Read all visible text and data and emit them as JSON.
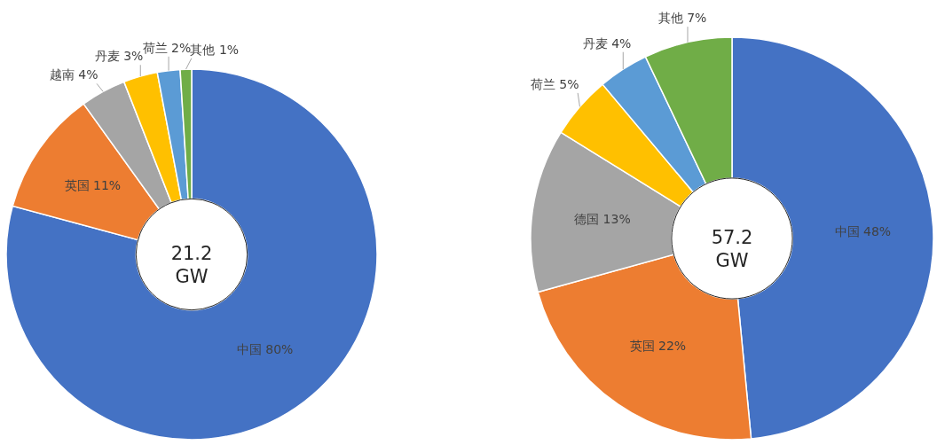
{
  "chart_data": [
    {
      "type": "donut",
      "categories": [
        "中国",
        "英国",
        "越南",
        "丹麦",
        "荷兰",
        "其他"
      ],
      "values": [
        80,
        11,
        4,
        3,
        2,
        1
      ],
      "colors": [
        "#4472c4",
        "#ed7d31",
        "#a5a5a5",
        "#ffc000",
        "#5b9bd5",
        "#70ad47"
      ],
      "value_labels": [
        "80%",
        "11%",
        "4%",
        "3%",
        "2%",
        "1%"
      ],
      "annotations": [
        "21.2\nGW"
      ]
    },
    {
      "type": "donut",
      "categories": [
        "中国",
        "英国",
        "德国",
        "荷兰",
        "丹麦",
        "其他"
      ],
      "values": [
        48,
        22,
        13,
        5,
        4,
        7
      ],
      "colors": [
        "#4472c4",
        "#ed7d31",
        "#a5a5a5",
        "#ffc000",
        "#5b9bd5",
        "#70ad47"
      ],
      "value_labels": [
        "48%",
        "22%",
        "13%",
        "5%",
        "4%",
        "7%"
      ],
      "annotations": [
        "57.2\nGW"
      ]
    }
  ]
}
